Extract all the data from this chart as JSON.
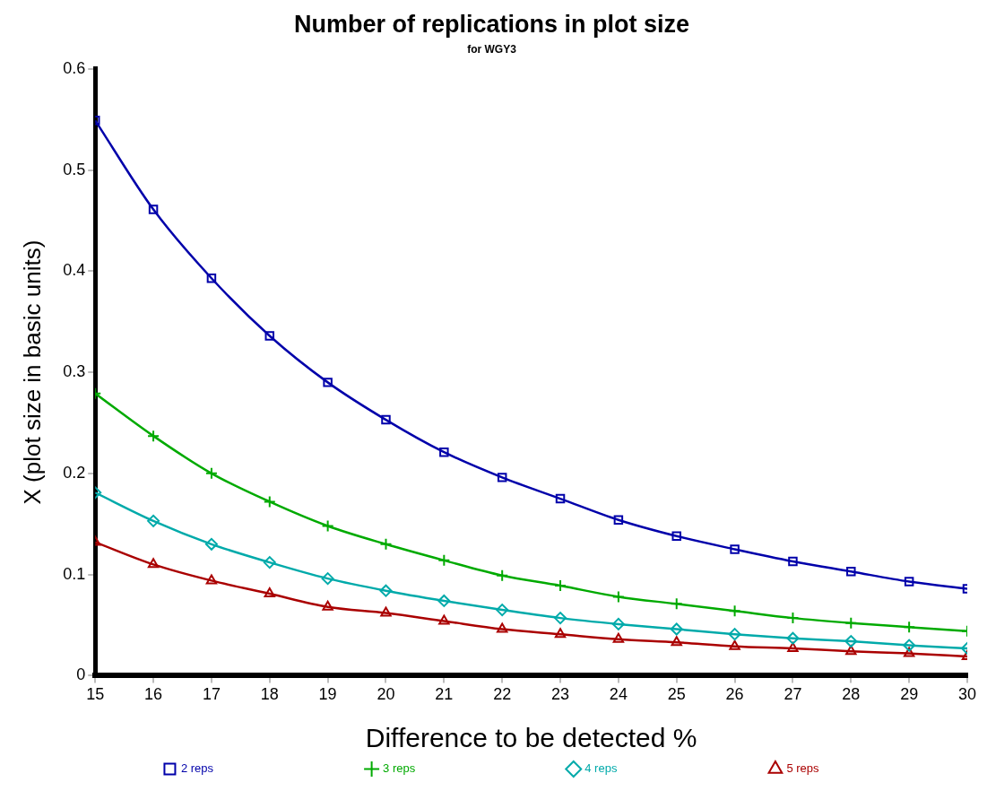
{
  "chart_data": {
    "type": "line",
    "title": "Number of replications in plot size",
    "subtitle": "for WGY3",
    "xlabel": "Difference to be detected %",
    "ylabel": "X (plot size in basic units)",
    "x": [
      15,
      16,
      17,
      18,
      19,
      20,
      21,
      22,
      23,
      24,
      25,
      26,
      27,
      28,
      29,
      30
    ],
    "xlim": [
      15,
      30
    ],
    "xticks": [
      15,
      16,
      17,
      18,
      19,
      20,
      21,
      22,
      23,
      24,
      25,
      26,
      27,
      28,
      29,
      30
    ],
    "ylim": [
      0,
      0.6
    ],
    "yticks": [
      0,
      0.1,
      0.2,
      0.3,
      0.4,
      0.5,
      0.6
    ],
    "grid": false,
    "legend": "bottom",
    "series": [
      {
        "name": "2 reps",
        "color": "#0000aa",
        "marker": "square",
        "values": [
          0.549,
          0.461,
          0.393,
          0.336,
          0.29,
          0.253,
          0.221,
          0.196,
          0.175,
          0.154,
          0.138,
          0.125,
          0.113,
          0.103,
          0.093,
          0.086
        ]
      },
      {
        "name": "3 reps",
        "color": "#00aa00",
        "marker": "cross",
        "values": [
          0.279,
          0.237,
          0.2,
          0.172,
          0.148,
          0.13,
          0.114,
          0.099,
          0.089,
          0.078,
          0.071,
          0.064,
          0.057,
          0.052,
          0.048,
          0.044
        ]
      },
      {
        "name": "4 reps",
        "color": "#00aaaa",
        "marker": "diamond",
        "values": [
          0.181,
          0.153,
          0.13,
          0.112,
          0.096,
          0.084,
          0.074,
          0.065,
          0.057,
          0.051,
          0.046,
          0.041,
          0.037,
          0.034,
          0.03,
          0.027
        ]
      },
      {
        "name": "5 reps",
        "color": "#aa0000",
        "marker": "triangle",
        "values": [
          0.132,
          0.11,
          0.094,
          0.081,
          0.068,
          0.062,
          0.054,
          0.046,
          0.041,
          0.036,
          0.033,
          0.029,
          0.027,
          0.024,
          0.022,
          0.019
        ]
      }
    ]
  }
}
